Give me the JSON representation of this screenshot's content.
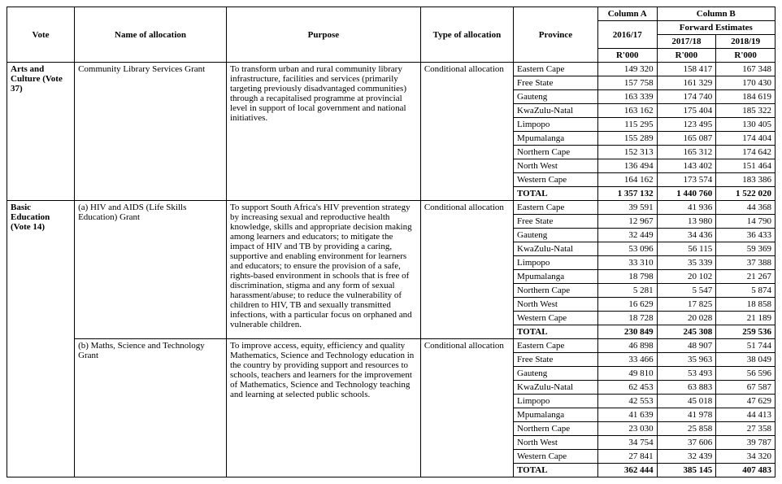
{
  "header": {
    "vote": "Vote",
    "name": "Name of allocation",
    "purpose": "Purpose",
    "type": "Type of allocation",
    "province": "Province",
    "columnA": "Column A",
    "columnB": "Column B",
    "yearA": "2016/17",
    "forward": "Forward Estimates",
    "yearB1": "2017/18",
    "yearB2": "2018/19",
    "unit": "R'000"
  },
  "provinces": [
    "Eastern Cape",
    "Free State",
    "Gauteng",
    "KwaZulu-Natal",
    "Limpopo",
    "Mpumalanga",
    "Northern Cape",
    "North West",
    "Western Cape"
  ],
  "totalLabel": "TOTAL",
  "sections": [
    {
      "vote": "Arts and Culture (Vote 37)",
      "grants": [
        {
          "name": "Community Library Services Grant",
          "purpose": "To transform urban and rural community library infrastructure, facilities and services (primarily targeting previously disadvantaged communities) through a recapitalised programme at provincial level in support of local government and national initiatives.",
          "type": "Conditional allocation",
          "rows": [
            {
              "p": "Eastern Cape",
              "a": "149 320",
              "b1": "158 417",
              "b2": "167 348"
            },
            {
              "p": "Free State",
              "a": "157 758",
              "b1": "161 329",
              "b2": "170 430"
            },
            {
              "p": "Gauteng",
              "a": "163 339",
              "b1": "174 740",
              "b2": "184 619"
            },
            {
              "p": "KwaZulu-Natal",
              "a": "163 162",
              "b1": "175 404",
              "b2": "185 322"
            },
            {
              "p": "Limpopo",
              "a": "115 295",
              "b1": "123 495",
              "b2": "130 405"
            },
            {
              "p": "Mpumalanga",
              "a": "155 289",
              "b1": "165 087",
              "b2": "174 404"
            },
            {
              "p": "Northern Cape",
              "a": "152 313",
              "b1": "165 312",
              "b2": "174 642"
            },
            {
              "p": "North West",
              "a": "136 494",
              "b1": "143 402",
              "b2": "151 464"
            },
            {
              "p": "Western Cape",
              "a": "164 162",
              "b1": "173 574",
              "b2": "183 386"
            }
          ],
          "total": {
            "a": "1 357 132",
            "b1": "1 440 760",
            "b2": "1 522 020"
          }
        }
      ]
    },
    {
      "vote": "Basic Education (Vote 14)",
      "grants": [
        {
          "name": "(a) HIV and AIDS (Life Skills Education) Grant",
          "purpose": "To support South Africa's HIV prevention strategy by increasing sexual and reproductive health knowledge, skills and appropriate decision making among learners and educators; to mitigate the impact of HIV and TB by providing a caring, supportive and enabling environment for learners and educators; to ensure the provision of a safe, rights-based environment in schools that is free of discrimination, stigma and any form of sexual harassment/abuse; to reduce the vulnerability of children to HIV, TB and sexually transmitted infections, with a particular focus on orphaned and vulnerable children.",
          "type": "Conditional allocation",
          "rows": [
            {
              "p": "Eastern Cape",
              "a": "39 591",
              "b1": "41 936",
              "b2": "44 368"
            },
            {
              "p": "Free State",
              "a": "12 967",
              "b1": "13 980",
              "b2": "14 790"
            },
            {
              "p": "Gauteng",
              "a": "32 449",
              "b1": "34 436",
              "b2": "36 433"
            },
            {
              "p": "KwaZulu-Natal",
              "a": "53 096",
              "b1": "56 115",
              "b2": "59 369"
            },
            {
              "p": "Limpopo",
              "a": "33 310",
              "b1": "35 339",
              "b2": "37 388"
            },
            {
              "p": "Mpumalanga",
              "a": "18 798",
              "b1": "20 102",
              "b2": "21 267"
            },
            {
              "p": "Northern Cape",
              "a": "5 281",
              "b1": "5 547",
              "b2": "5 874"
            },
            {
              "p": "North West",
              "a": "16 629",
              "b1": "17 825",
              "b2": "18 858"
            },
            {
              "p": "Western Cape",
              "a": "18 728",
              "b1": "20 028",
              "b2": "21 189"
            }
          ],
          "total": {
            "a": "230 849",
            "b1": "245 308",
            "b2": "259 536"
          }
        },
        {
          "name": "(b) Maths, Science and Technology Grant",
          "purpose": "To improve access, equity, efficiency and quality Mathematics, Science and Technology education in the country by providing support and resources to schools, teachers and learners for the improvement of Mathematics, Science and Technology teaching and learning at selected public schools.",
          "type": "Conditional allocation",
          "rows": [
            {
              "p": "Eastern Cape",
              "a": "46 898",
              "b1": "48 907",
              "b2": "51 744"
            },
            {
              "p": "Free State",
              "a": "33 466",
              "b1": "35 963",
              "b2": "38 049"
            },
            {
              "p": "Gauteng",
              "a": "49 810",
              "b1": "53 493",
              "b2": "56 596"
            },
            {
              "p": "KwaZulu-Natal",
              "a": "62 453",
              "b1": "63 883",
              "b2": "67 587"
            },
            {
              "p": "Limpopo",
              "a": "42 553",
              "b1": "45 018",
              "b2": "47 629"
            },
            {
              "p": "Mpumalanga",
              "a": "41 639",
              "b1": "41 978",
              "b2": "44 413"
            },
            {
              "p": "Northern Cape",
              "a": "23 030",
              "b1": "25 858",
              "b2": "27 358"
            },
            {
              "p": "North West",
              "a": "34 754",
              "b1": "37 606",
              "b2": "39 787"
            },
            {
              "p": "Western Cape",
              "a": "27 841",
              "b1": "32 439",
              "b2": "34 320"
            }
          ],
          "total": {
            "a": "362 444",
            "b1": "385 145",
            "b2": "407 483"
          }
        }
      ]
    }
  ]
}
